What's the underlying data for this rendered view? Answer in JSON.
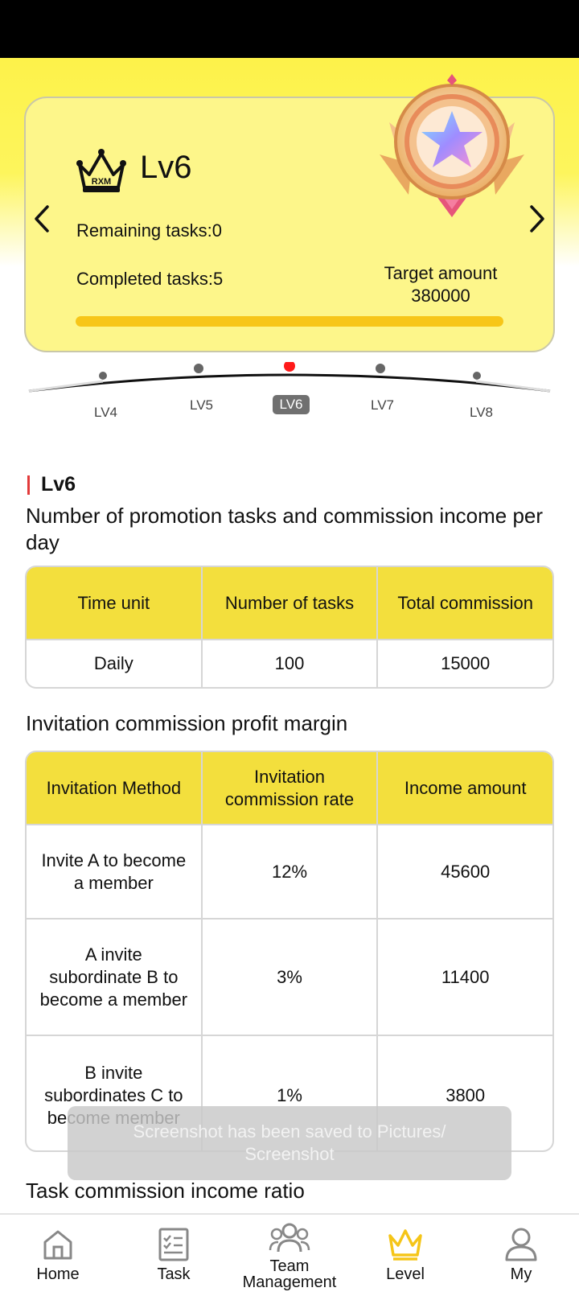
{
  "level_card": {
    "level_name": "Lv6",
    "badge_text": "RXM",
    "remaining_tasks": "Remaining tasks:0",
    "completed_tasks": "Completed tasks:5",
    "target_label": "Target amount",
    "target_amount": "380000",
    "progress_fraction": 1.0
  },
  "level_scale": {
    "levels": [
      "LV4",
      "LV5",
      "LV6",
      "LV7",
      "LV8"
    ],
    "active": "LV6"
  },
  "section": {
    "title": "Lv6",
    "description": "Number of promotion tasks and commission income per day"
  },
  "daily_table": {
    "headers": [
      "Time unit",
      "Number of tasks",
      "Total commission"
    ],
    "rows": [
      [
        "Daily",
        "100",
        "15000"
      ]
    ]
  },
  "invitation": {
    "title": "Invitation commission profit margin",
    "headers": [
      "Invitation Method",
      "Invitation commission rate",
      "Income amount"
    ],
    "rows": [
      [
        "Invite A to become a member",
        "12%",
        "45600"
      ],
      [
        "A invite subordinate B to become a member",
        "3%",
        "11400"
      ],
      [
        "B invite subordinates C to become member",
        "1%",
        "3800"
      ]
    ]
  },
  "toast": "Screenshot has been saved to  Pictures/ Screenshot",
  "task_ratio_title": "Task commission income ratio",
  "bottom_nav": {
    "items": [
      {
        "label": "Home",
        "icon": "home-icon"
      },
      {
        "label": "Task",
        "icon": "task-checklist-icon"
      },
      {
        "label": "Team Management",
        "icon": "team-icon"
      },
      {
        "label": "Level",
        "icon": "crown-icon"
      },
      {
        "label": "My",
        "icon": "user-icon"
      }
    ],
    "active": "Level"
  },
  "colors": {
    "accent_yellow": "#f3df3d",
    "card_yellow": "#fdf68a",
    "progress": "#f7c618",
    "active_nav": "#f5c518",
    "section_marker": "#e23a3a",
    "active_dot": "#ff1a1a"
  }
}
